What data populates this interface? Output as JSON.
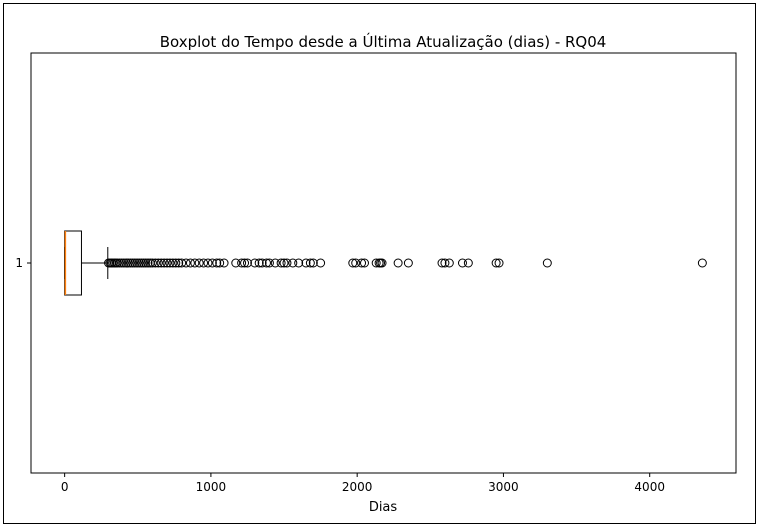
{
  "chart_data": {
    "type": "boxplot",
    "title": "Boxplot do Tempo desde a Última Atualização (dias) - RQ04",
    "xlabel": "Dias",
    "ylabel": "",
    "orientation": "horizontal",
    "xlim": [
      -230,
      4590
    ],
    "xticks": [
      0,
      1000,
      2000,
      3000,
      4000
    ],
    "yticks": [
      "1"
    ],
    "grid": false,
    "series": [
      {
        "category": "1",
        "min": 0,
        "q1": 0,
        "median": 5,
        "q3": 115,
        "whisker_high": 295,
        "outliers": [
          300,
          310,
          320,
          330,
          340,
          350,
          360,
          375,
          390,
          405,
          420,
          435,
          450,
          465,
          480,
          495,
          510,
          525,
          540,
          555,
          570,
          585,
          600,
          620,
          640,
          660,
          680,
          700,
          720,
          740,
          760,
          780,
          800,
          830,
          860,
          890,
          920,
          950,
          980,
          1010,
          1040,
          1060,
          1090,
          1170,
          1210,
          1230,
          1250,
          1300,
          1330,
          1350,
          1380,
          1400,
          1440,
          1480,
          1500,
          1520,
          1560,
          1600,
          1650,
          1680,
          1700,
          1750,
          1970,
          1990,
          2030,
          2050,
          2130,
          2150,
          2160,
          2170,
          2280,
          2350,
          2580,
          2600,
          2630,
          2720,
          2760,
          2950,
          2970,
          3300,
          4360
        ]
      }
    ],
    "colors": {
      "median": "#ff7f0e",
      "box": "#000000",
      "outlier_edge": "#000000"
    }
  }
}
